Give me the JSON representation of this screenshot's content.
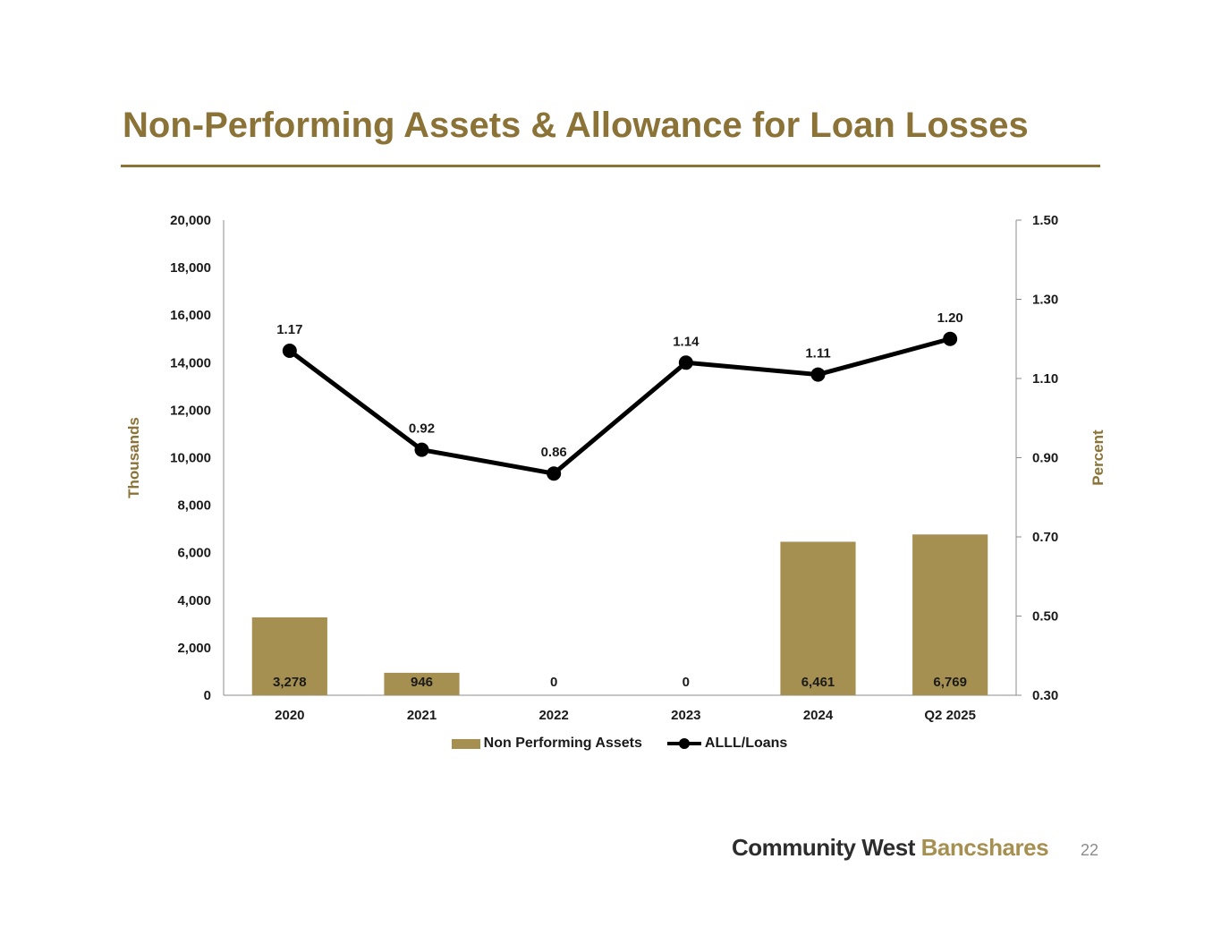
{
  "title": "Non-Performing Assets & Allowance for Loan Losses",
  "footer": {
    "brand_primary": "Community West",
    "brand_secondary": "Bancshares",
    "page_number": "22"
  },
  "colors": {
    "accent": "#8b7337",
    "bar": "#a69051",
    "line": "#000000"
  },
  "chart_data": {
    "type": "bar",
    "categories": [
      "2020",
      "2021",
      "2022",
      "2023",
      "2024",
      "Q2 2025"
    ],
    "series": [
      {
        "name": "Non Performing Assets",
        "type": "bar",
        "axis": "left",
        "values": [
          3278,
          946,
          0,
          0,
          6461,
          6769
        ],
        "labels": [
          "3,278",
          "946",
          "0",
          "0",
          "6,461",
          "6,769"
        ]
      },
      {
        "name": "ALLL/Loans",
        "type": "line",
        "axis": "right",
        "values": [
          1.17,
          0.92,
          0.86,
          1.14,
          1.11,
          1.2
        ],
        "labels": [
          "1.17",
          "0.92",
          "0.86",
          "1.14",
          "1.11",
          "1.20"
        ]
      }
    ],
    "y_left": {
      "label": "Thousands",
      "range": [
        0,
        20000
      ],
      "ticks": [
        "0",
        "2,000",
        "4,000",
        "6,000",
        "8,000",
        "10,000",
        "12,000",
        "14,000",
        "16,000",
        "18,000",
        "20,000"
      ]
    },
    "y_right": {
      "label": "Percent",
      "range": [
        0.3,
        1.5
      ],
      "ticks": [
        "0.30",
        "0.50",
        "0.70",
        "0.90",
        "1.10",
        "1.30",
        "1.50"
      ]
    },
    "legend_position": "bottom",
    "grid": false
  }
}
